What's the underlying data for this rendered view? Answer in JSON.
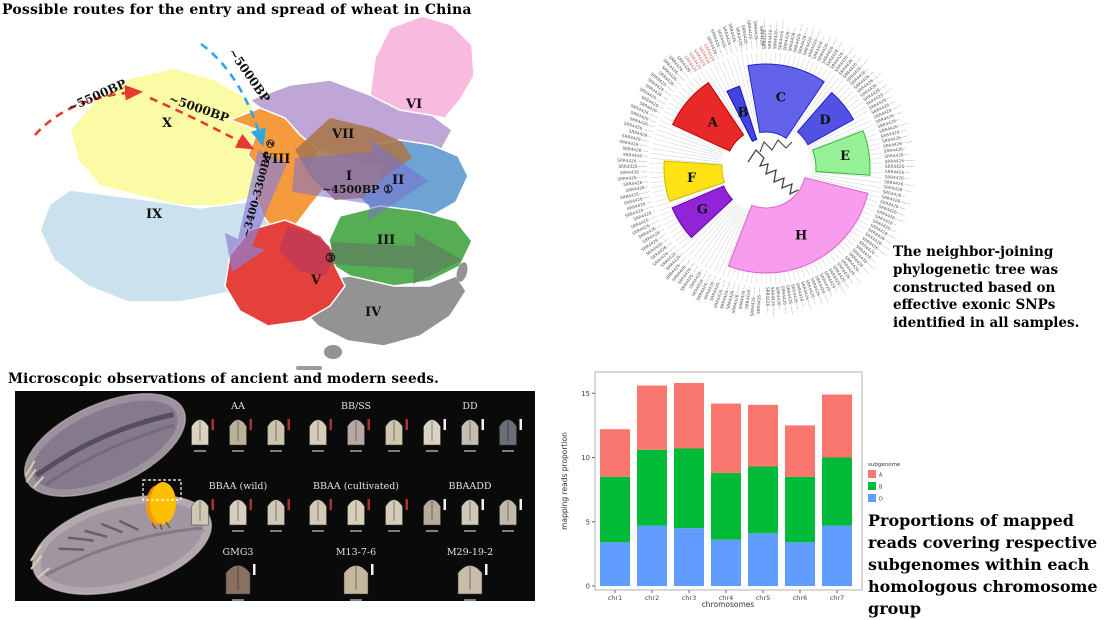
{
  "map_panel": {
    "title": "Possible routes for the entry and spread of wheat in China",
    "regions": [
      {
        "numeral": "I",
        "color": "#A9784E"
      },
      {
        "numeral": "II",
        "color": "#6FA3D3"
      },
      {
        "numeral": "III",
        "color": "#55AE54"
      },
      {
        "numeral": "IV",
        "color": "#939393"
      },
      {
        "numeral": "V",
        "color": "#E4403C"
      },
      {
        "numeral": "VI",
        "color": "#F9BADF"
      },
      {
        "numeral": "VII",
        "color": "#C0A5D7"
      },
      {
        "numeral": "VIII",
        "color": "#F59B3D"
      },
      {
        "numeral": "IX",
        "color": "#CBE1EE"
      },
      {
        "numeral": "X",
        "color": "#FBFBA6"
      }
    ],
    "route_labels": {
      "bp5500": "~5500BP",
      "bp5000_red": "~5000BP",
      "bp5000_blue": "~5000BP",
      "bp4500": "~4500BP ①",
      "bp3400": "~3400-3300BP ②",
      "circle3": "③"
    },
    "route_colors": {
      "red_dashed": "#E8392F",
      "blue_dashed": "#2FA8E0",
      "purple_arrow": "#8F7FD4"
    }
  },
  "tree_panel": {
    "caption": "The neighbor-joining phylogenetic tree was constructed based on effective exonic SNPs identified in all samples.",
    "clades": [
      {
        "label": "A",
        "color": "#E81717",
        "stroke": "#C00000"
      },
      {
        "label": "B",
        "color": "#3434DD",
        "stroke": "#1111BB"
      },
      {
        "label": "C",
        "color": "#5656E8",
        "stroke": "#2222CC"
      },
      {
        "label": "D",
        "color": "#4343E2",
        "stroke": "#2222CC"
      },
      {
        "label": "E",
        "color": "#8EF08E",
        "stroke": "#33BB33"
      },
      {
        "label": "F",
        "color": "#FFE100",
        "stroke": "#D4B800"
      },
      {
        "label": "G",
        "color": "#8812D4",
        "stroke": "#6A00A8"
      },
      {
        "label": "H",
        "color": "#F795EC",
        "stroke": "#E25FD2"
      }
    ],
    "tip_label_placeholder": "SRR4426···-····",
    "tip_label_color": "#555555",
    "tip_highlight_color": "#D86060"
  },
  "seeds_panel": {
    "title": "Microscopic observations of ancient and modern seeds.",
    "groups": [
      {
        "label": "AA",
        "seeds": 3
      },
      {
        "label": "BB/SS",
        "seeds": 3
      },
      {
        "label": "DD",
        "seeds": 3
      },
      {
        "label": "BBAA (wild)",
        "seeds": 3
      },
      {
        "label": "BBAA (cultivated)",
        "seeds": 3
      },
      {
        "label": "BBAADD",
        "seeds": 3
      },
      {
        "label": "GMG3",
        "seeds": 1
      },
      {
        "label": "M13-7-6",
        "seeds": 1
      },
      {
        "label": "M29-19-2",
        "seeds": 1
      }
    ]
  },
  "chart_panel": {
    "caption": "Proportions of mapped reads covering respective subgenomes within each homologous chromosome group"
  },
  "chart_data": {
    "type": "bar",
    "stacked": true,
    "categories": [
      "chr1",
      "chr2",
      "chr3",
      "chr4",
      "chr5",
      "chr6",
      "chr7"
    ],
    "series": [
      {
        "name": "D",
        "color": "#619CFF",
        "values": [
          3.4,
          4.7,
          4.5,
          3.6,
          4.1,
          3.4,
          4.7
        ]
      },
      {
        "name": "B",
        "color": "#00BA38",
        "values": [
          5.1,
          5.9,
          6.2,
          5.2,
          5.2,
          5.1,
          5.3
        ]
      },
      {
        "name": "A",
        "color": "#F8766D",
        "values": [
          3.7,
          5.0,
          5.1,
          5.4,
          4.8,
          4.0,
          4.9
        ]
      }
    ],
    "totals": [
      12.2,
      15.6,
      15.8,
      14.2,
      14.1,
      12.5,
      14.9
    ],
    "legend_title": "subgenome",
    "legend_order": [
      "A",
      "B",
      "D"
    ],
    "xlabel": "chromosomes",
    "ylabel": "mapping reads proportion",
    "yticks": [
      0,
      5,
      10,
      15
    ],
    "ylim": [
      0,
      16.6
    ],
    "legend_position": "right",
    "grid": false
  }
}
